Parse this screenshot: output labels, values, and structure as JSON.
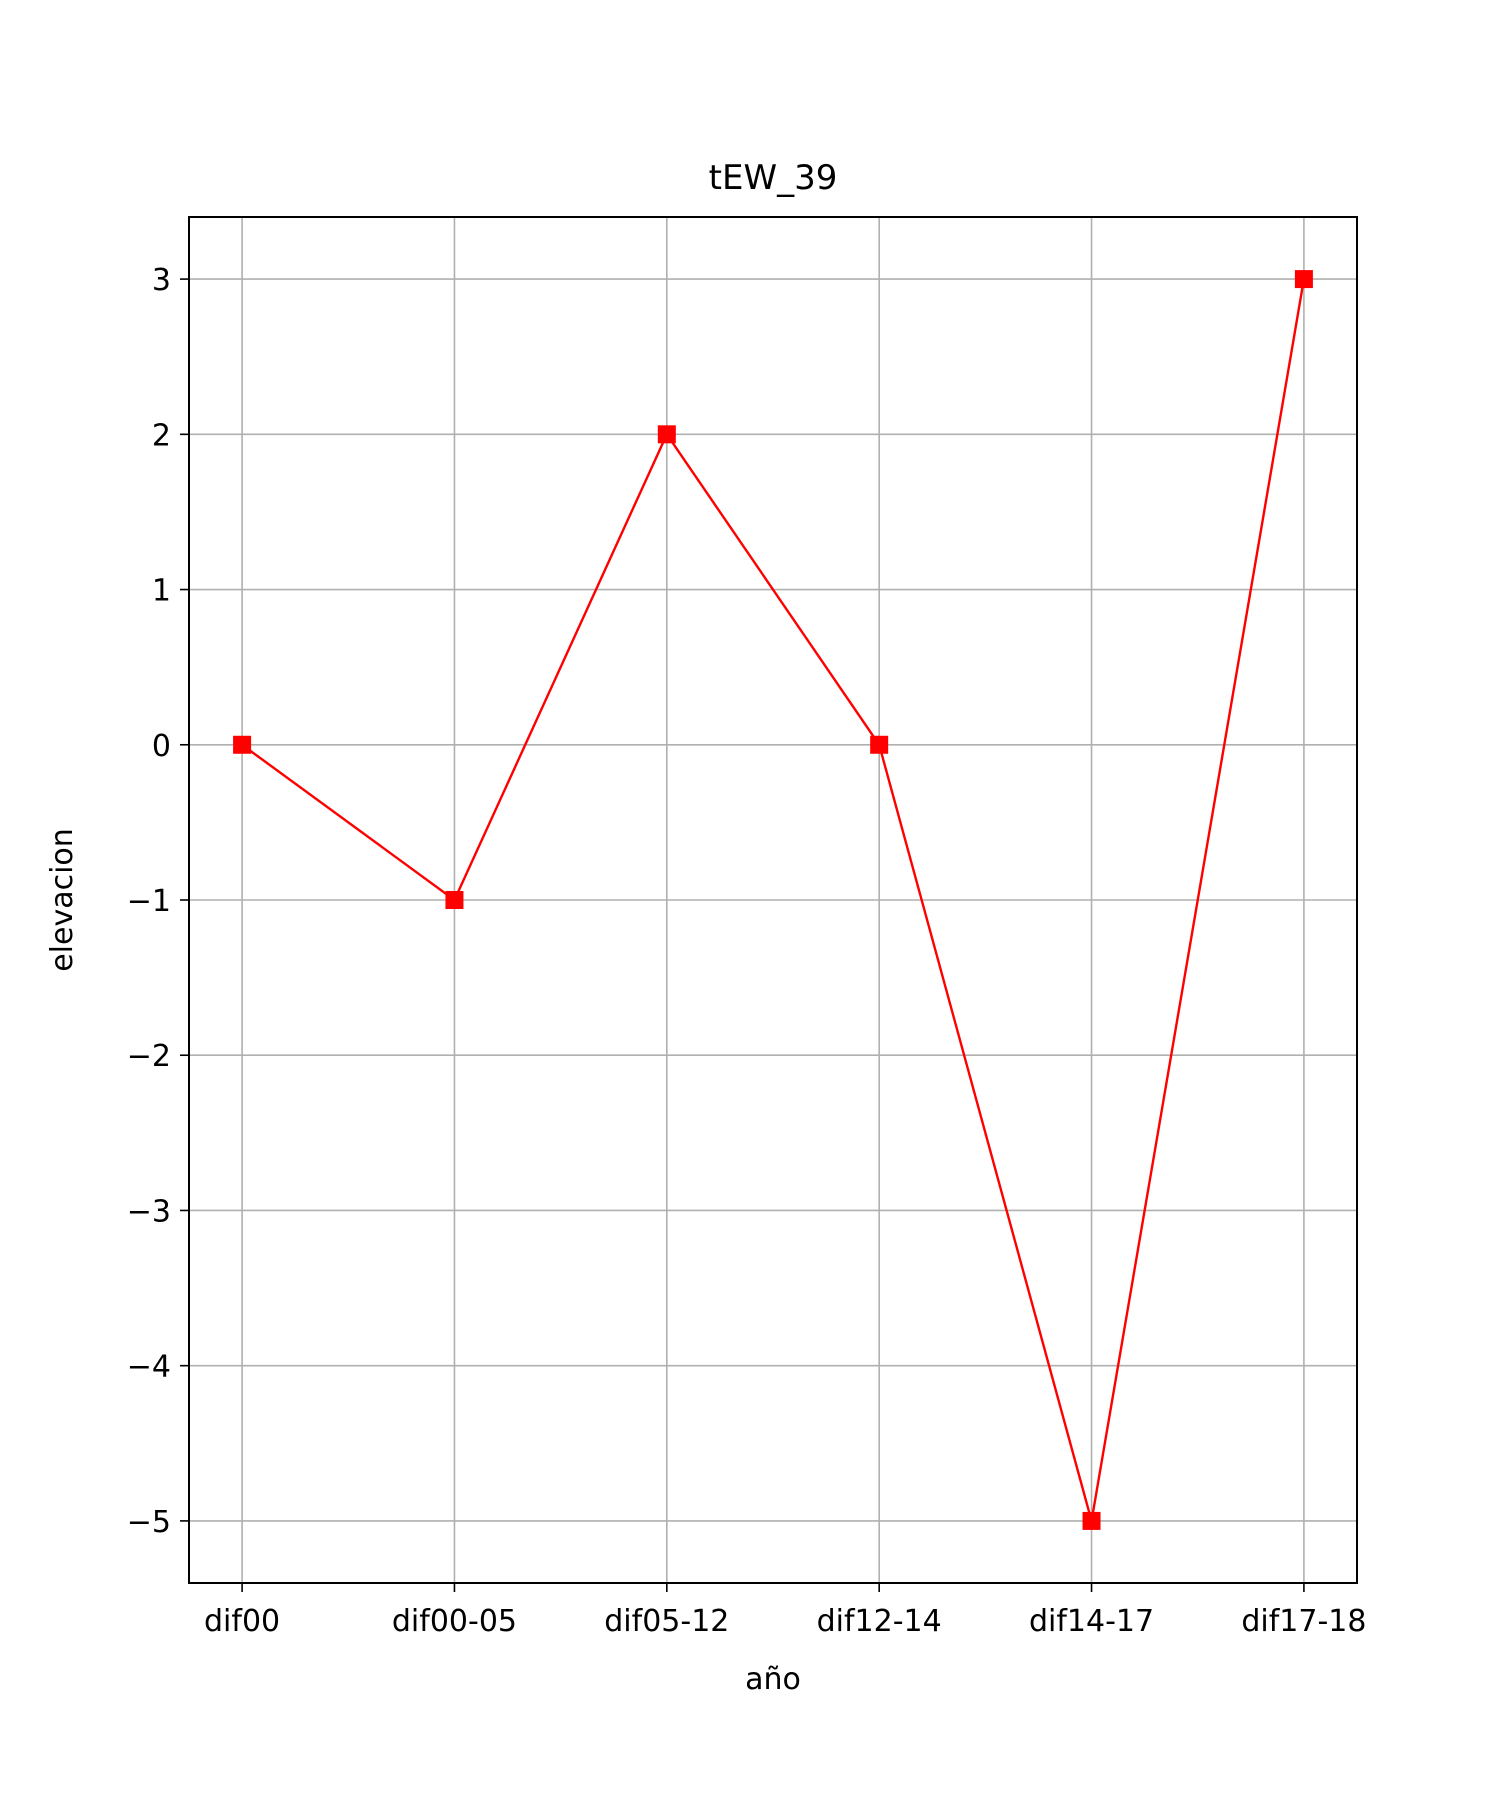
{
  "chart_data": {
    "type": "line",
    "title": "tEW_39",
    "xlabel": "año",
    "ylabel": "elevacion",
    "categories": [
      "dif00",
      "dif00-05",
      "dif05-12",
      "dif12-14",
      "dif14-17",
      "dif17-18"
    ],
    "series": [
      {
        "values": [
          0,
          -1,
          2,
          0,
          -5,
          3
        ],
        "color": "#ff0000",
        "marker": "square"
      }
    ],
    "ylim": [
      -5.4,
      3.4
    ],
    "yticks": [
      -5,
      -4,
      -3,
      -2,
      -1,
      0,
      1,
      2,
      3
    ],
    "ytick_labels": [
      "−5",
      "−4",
      "−3",
      "−2",
      "−1",
      "0",
      "1",
      "2",
      "3"
    ],
    "grid": true,
    "grid_color": "#b0b0b0",
    "axes_color": "#000000"
  }
}
